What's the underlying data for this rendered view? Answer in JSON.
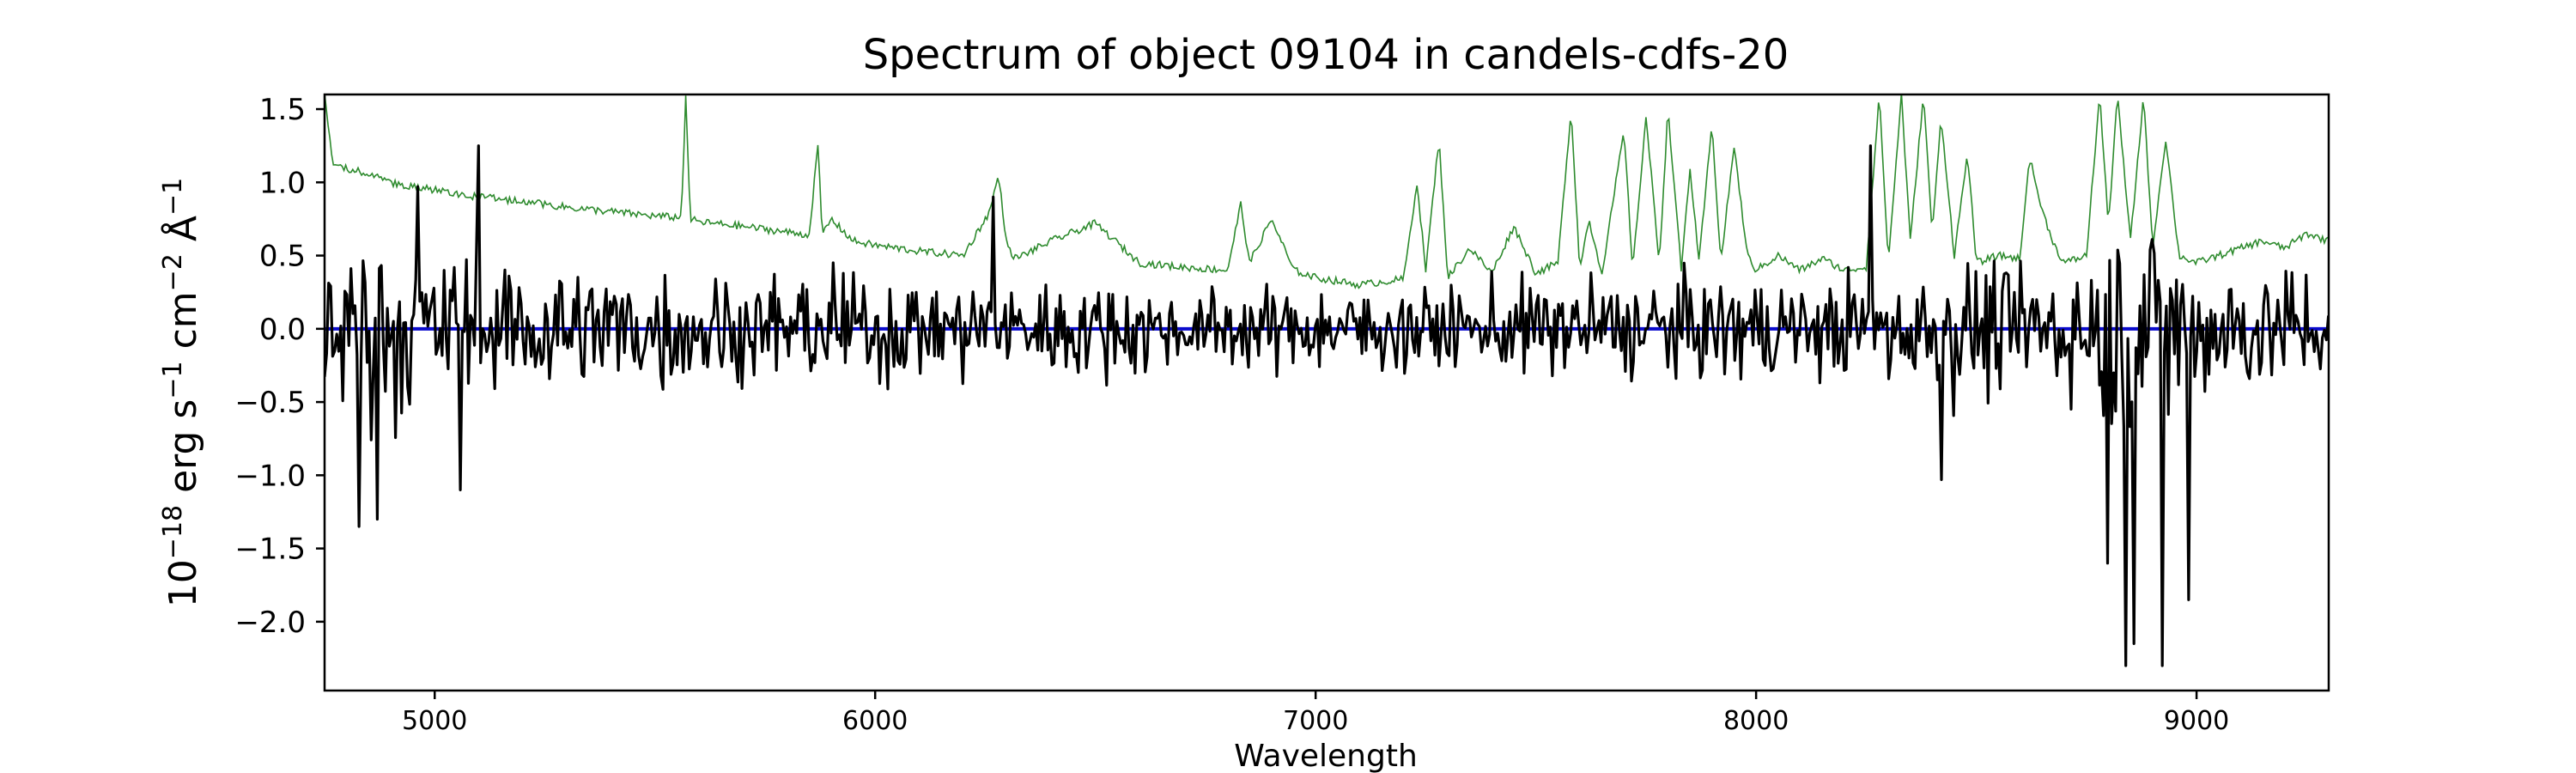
{
  "chart_data": {
    "type": "line",
    "title": "Spectrum of object 09104 in candels-cdfs-20",
    "xlabel": "Wavelength",
    "ylabel": {
      "base": "10",
      "exp1": "−18",
      "part2": " erg s",
      "exp2": "−1",
      "part3": " cm",
      "exp3": "−2",
      "part4": " Å",
      "exp4": "−1"
    },
    "xlim": [
      4750,
      9300
    ],
    "ylim": [
      -2.47,
      1.6
    ],
    "xticks": [
      5000,
      6000,
      7000,
      8000,
      9000
    ],
    "xtick_labels": [
      "5000",
      "6000",
      "7000",
      "8000",
      "9000"
    ],
    "yticks": [
      1.5,
      1.0,
      0.5,
      0.0,
      -0.5,
      -1.0,
      -1.5,
      -2.0
    ],
    "ytick_labels": [
      "1.5",
      "1.0",
      "0.5",
      "0.0",
      "−0.5",
      "−1.0",
      "−1.5",
      "−2.0"
    ],
    "grid": false,
    "series": [
      {
        "role": "contamination_model",
        "color": "#2e8b2e",
        "x": [
          4750,
          4770,
          4790,
          4850,
          4900,
          4950,
          5000,
          5050,
          5100,
          5200,
          5300,
          5400,
          5500,
          5560,
          5570,
          5580,
          5590,
          5600,
          5700,
          5800,
          5850,
          5870,
          5880,
          5900,
          5950,
          6000,
          6100,
          6200,
          6260,
          6280,
          6300,
          6320,
          6400,
          6500,
          6600,
          6700,
          6800,
          6830,
          6850,
          6900,
          6950,
          7000,
          7100,
          7200,
          7230,
          7250,
          7280,
          7300,
          7350,
          7400,
          7450,
          7500,
          7550,
          7580,
          7600,
          7620,
          7650,
          7700,
          7720,
          7750,
          7780,
          7800,
          7830,
          7850,
          7870,
          7900,
          7920,
          7950,
          7980,
          8000,
          8050,
          8100,
          8150,
          8200,
          8250,
          8280,
          8300,
          8330,
          8350,
          8380,
          8400,
          8420,
          8450,
          8480,
          8500,
          8550,
          8600,
          8620,
          8650,
          8680,
          8700,
          8750,
          8780,
          8800,
          8820,
          8850,
          8880,
          8900,
          8930,
          8960,
          9000,
          9050,
          9100,
          9150,
          9200,
          9250,
          9300
        ],
        "y": [
          1.6,
          1.1,
          1.1,
          1.06,
          1.0,
          0.97,
          0.95,
          0.92,
          0.9,
          0.87,
          0.83,
          0.8,
          0.77,
          0.76,
          1.6,
          0.75,
          0.74,
          0.73,
          0.7,
          0.66,
          0.64,
          1.25,
          0.64,
          0.75,
          0.6,
          0.57,
          0.53,
          0.5,
          0.8,
          1.05,
          0.55,
          0.48,
          0.6,
          0.72,
          0.45,
          0.42,
          0.4,
          0.85,
          0.45,
          0.75,
          0.4,
          0.35,
          0.3,
          0.34,
          1.0,
          0.4,
          1.3,
          0.35,
          0.55,
          0.38,
          0.7,
          0.38,
          0.45,
          1.5,
          0.4,
          0.75,
          0.38,
          1.35,
          0.4,
          1.45,
          0.45,
          1.5,
          0.4,
          1.1,
          0.45,
          1.4,
          0.45,
          1.25,
          0.5,
          0.4,
          0.5,
          0.4,
          0.48,
          0.4,
          0.42,
          1.6,
          0.45,
          1.6,
          0.6,
          1.6,
          0.65,
          1.45,
          0.5,
          1.2,
          0.45,
          0.5,
          0.48,
          1.18,
          0.8,
          0.55,
          0.45,
          0.5,
          1.6,
          0.7,
          1.6,
          0.6,
          1.6,
          0.55,
          1.3,
          0.5,
          0.45,
          0.5,
          0.55,
          0.6,
          0.55,
          0.65,
          0.6
        ]
      },
      {
        "role": "spectrum",
        "color": "#000000",
        "noise_envelope": {
          "x": [
            4750,
            4800,
            4850,
            4900,
            4950,
            5000,
            5050,
            5100,
            5150,
            5200,
            5300,
            5400,
            5500,
            5600,
            5700,
            5800,
            5900,
            6000,
            6100,
            6200,
            6300,
            6400,
            6500,
            6600,
            6700,
            6800,
            6900,
            7000,
            7100,
            7200,
            7300,
            7400,
            7500,
            7600,
            7700,
            7800,
            7900,
            8000,
            8100,
            8200,
            8300,
            8400,
            8500,
            8600,
            8700,
            8800,
            8900,
            9000,
            9100,
            9200,
            9300
          ],
          "sigma": [
            0.35,
            0.45,
            0.55,
            0.5,
            0.45,
            0.4,
            0.4,
            0.45,
            0.35,
            0.35,
            0.33,
            0.32,
            0.3,
            0.28,
            0.28,
            0.27,
            0.3,
            0.28,
            0.27,
            0.26,
            0.27,
            0.25,
            0.24,
            0.22,
            0.2,
            0.2,
            0.2,
            0.2,
            0.21,
            0.22,
            0.24,
            0.23,
            0.25,
            0.27,
            0.25,
            0.27,
            0.25,
            0.26,
            0.24,
            0.26,
            0.3,
            0.35,
            0.34,
            0.3,
            0.35,
            0.55,
            0.55,
            0.45,
            0.32,
            0.3,
            0.28
          ]
        },
        "features": [
          {
            "x": 4830,
            "y": -1.35
          },
          {
            "x": 4870,
            "y": -1.3
          },
          {
            "x": 4960,
            "y": 0.97
          },
          {
            "x": 5060,
            "y": -1.1
          },
          {
            "x": 5100,
            "y": 1.25
          },
          {
            "x": 6270,
            "y": 0.9
          },
          {
            "x": 8260,
            "y": 1.25
          },
          {
            "x": 8420,
            "y": -1.03
          },
          {
            "x": 8800,
            "y": -1.6
          },
          {
            "x": 8840,
            "y": -2.3
          },
          {
            "x": 8860,
            "y": -2.15
          },
          {
            "x": 8920,
            "y": -2.3
          },
          {
            "x": 8980,
            "y": -1.85
          }
        ]
      },
      {
        "role": "zero_line",
        "color": "#0a0acc",
        "y": 0.0
      }
    ]
  }
}
